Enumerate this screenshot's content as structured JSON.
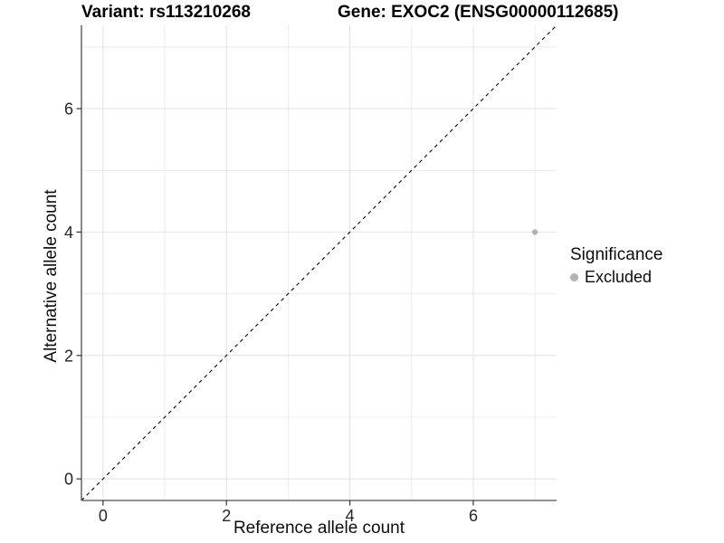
{
  "header": {
    "variant_title": "Variant: rs113210268",
    "gene_title": "Gene: EXOC2 (ENSG00000112685)"
  },
  "chart_data": {
    "type": "scatter",
    "xlabel": "Reference allele count",
    "ylabel": "Alternative allele count",
    "xlim": [
      -0.35,
      7.35
    ],
    "ylim": [
      -0.35,
      7.35
    ],
    "x_major_ticks": [
      0,
      2,
      4,
      6
    ],
    "x_minor_ticks": [
      1,
      3,
      5,
      7
    ],
    "y_major_ticks": [
      0,
      2,
      4,
      6
    ],
    "y_minor_ticks": [
      1,
      3,
      5,
      7
    ],
    "grid": true,
    "points": [
      {
        "x": 7,
        "y": 4,
        "series": "Excluded"
      }
    ],
    "reference_line": {
      "slope": 1,
      "intercept": 0,
      "style": "dashed",
      "color": "#000000"
    },
    "legend": {
      "title": "Significance",
      "position": "right",
      "items": [
        {
          "label": "Excluded",
          "color": "#b3b3b3",
          "marker": "circle"
        }
      ]
    }
  },
  "colors": {
    "background": "#ffffff",
    "grid_major": "#e2e2e2",
    "grid_minor": "#ececec",
    "axis_line": "#4d4d4d",
    "tick_mark": "#333333",
    "tick_label": "#262626",
    "point": "#b3b3b3"
  }
}
